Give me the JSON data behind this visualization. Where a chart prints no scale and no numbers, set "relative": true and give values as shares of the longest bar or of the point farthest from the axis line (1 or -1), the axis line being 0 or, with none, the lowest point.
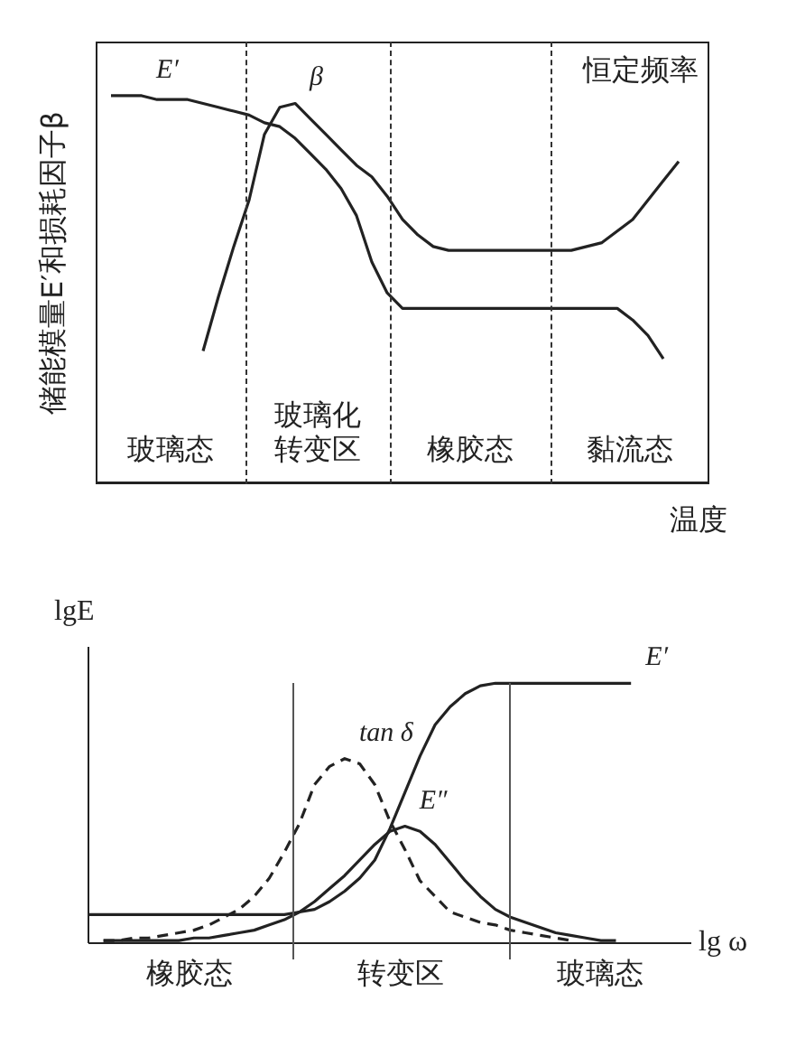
{
  "chart_data": [
    {
      "type": "line",
      "relative": true,
      "xlabel": "温度",
      "ylabel": "储能模量E′和损耗因子β",
      "annotations": [
        "恒定频率",
        "玻璃态",
        "玻璃化转变区",
        "橡胶态",
        "黏流态"
      ],
      "tick_labels": false,
      "marker": "none",
      "categories": [
        null,
        null,
        null,
        null,
        null,
        null,
        null,
        null,
        null,
        null,
        null,
        null,
        null,
        null,
        null,
        null,
        null,
        null,
        null,
        null,
        null,
        null,
        null,
        null,
        null,
        null,
        null,
        null,
        null,
        null,
        null,
        null,
        null,
        null,
        null,
        null,
        null,
        null,
        null,
        null,
        null
      ],
      "series": [
        {
          "name": "E′",
          "color": "#222222",
          "line_style": "solid",
          "values": [
            null,
            1,
            1,
            1,
            0.99,
            0.99,
            0.99,
            0.98,
            0.97,
            0.96,
            0.95,
            0.93,
            0.92,
            0.89,
            0.85,
            0.81,
            0.76,
            0.69,
            0.57,
            0.49,
            0.45,
            0.45,
            0.45,
            0.45,
            0.45,
            0.45,
            0.45,
            0.45,
            0.45,
            0.45,
            0.45,
            0.45,
            0.45,
            0.45,
            0.45,
            0.42,
            0.38,
            0.32,
            null,
            null,
            null
          ]
        },
        {
          "name": "β",
          "color": "#222222",
          "line_style": "solid",
          "values": [
            null,
            null,
            null,
            null,
            null,
            null,
            null,
            0.34,
            0.48,
            0.61,
            0.73,
            0.9,
            0.97,
            0.98,
            0.94,
            0.9,
            0.86,
            0.82,
            0.79,
            0.74,
            0.68,
            0.64,
            0.61,
            0.6,
            0.6,
            0.6,
            0.6,
            0.6,
            0.6,
            0.6,
            0.6,
            0.6,
            0.61,
            0.62,
            0.65,
            0.68,
            0.73,
            0.78,
            0.83,
            null,
            null
          ]
        }
      ]
    },
    {
      "type": "line",
      "relative": true,
      "xlabel": "lg ω",
      "ylabel": "lgE",
      "annotations": [
        "橡胶态",
        "转变区",
        "玻璃态"
      ],
      "tick_labels": false,
      "marker": "none",
      "categories": [
        null,
        null,
        null,
        null,
        null,
        null,
        null,
        null,
        null,
        null,
        null,
        null,
        null,
        null,
        null,
        null,
        null,
        null,
        null,
        null,
        null,
        null,
        null,
        null,
        null,
        null,
        null,
        null,
        null,
        null,
        null,
        null,
        null,
        null,
        null,
        null,
        null,
        null,
        null,
        null,
        null
      ],
      "series": [
        {
          "name": "E′",
          "color": "#222222",
          "line_style": "solid",
          "values": [
            0.11,
            0.11,
            0.11,
            0.11,
            0.11,
            0.11,
            0.11,
            0.11,
            0.11,
            0.11,
            0.11,
            0.11,
            0.11,
            0.11,
            0.12,
            0.13,
            0.16,
            0.2,
            0.25,
            0.32,
            0.44,
            0.58,
            0.72,
            0.84,
            0.91,
            0.96,
            0.99,
            1,
            1,
            1,
            1,
            1,
            1,
            1,
            1,
            1,
            1,
            null,
            null,
            null,
            null
          ]
        },
        {
          "name": "E″",
          "color": "#222222",
          "line_style": "solid",
          "values": [
            null,
            0.01,
            0.01,
            0.01,
            0.01,
            0.01,
            0.01,
            0.02,
            0.02,
            0.03,
            0.04,
            0.05,
            0.07,
            0.09,
            0.12,
            0.16,
            0.21,
            0.26,
            0.32,
            0.38,
            0.43,
            0.45,
            0.43,
            0.38,
            0.31,
            0.24,
            0.18,
            0.13,
            0.1,
            0.08,
            0.06,
            0.04,
            0.03,
            0.02,
            0.01,
            0.01,
            null,
            null,
            null,
            null,
            null
          ]
        },
        {
          "name": "tan δ",
          "color": "#222222",
          "line_style": "dashed",
          "values": [
            null,
            0.01,
            0.01,
            0.02,
            0.02,
            0.03,
            0.04,
            0.05,
            0.07,
            0.1,
            0.13,
            0.18,
            0.25,
            0.35,
            0.46,
            0.61,
            0.68,
            0.71,
            0.69,
            0.61,
            0.47,
            0.36,
            0.24,
            0.18,
            0.12,
            0.1,
            0.08,
            0.07,
            0.05,
            0.04,
            0.03,
            0.02,
            0.01,
            null,
            null,
            null,
            null,
            null,
            null,
            null,
            null
          ]
        }
      ]
    }
  ]
}
